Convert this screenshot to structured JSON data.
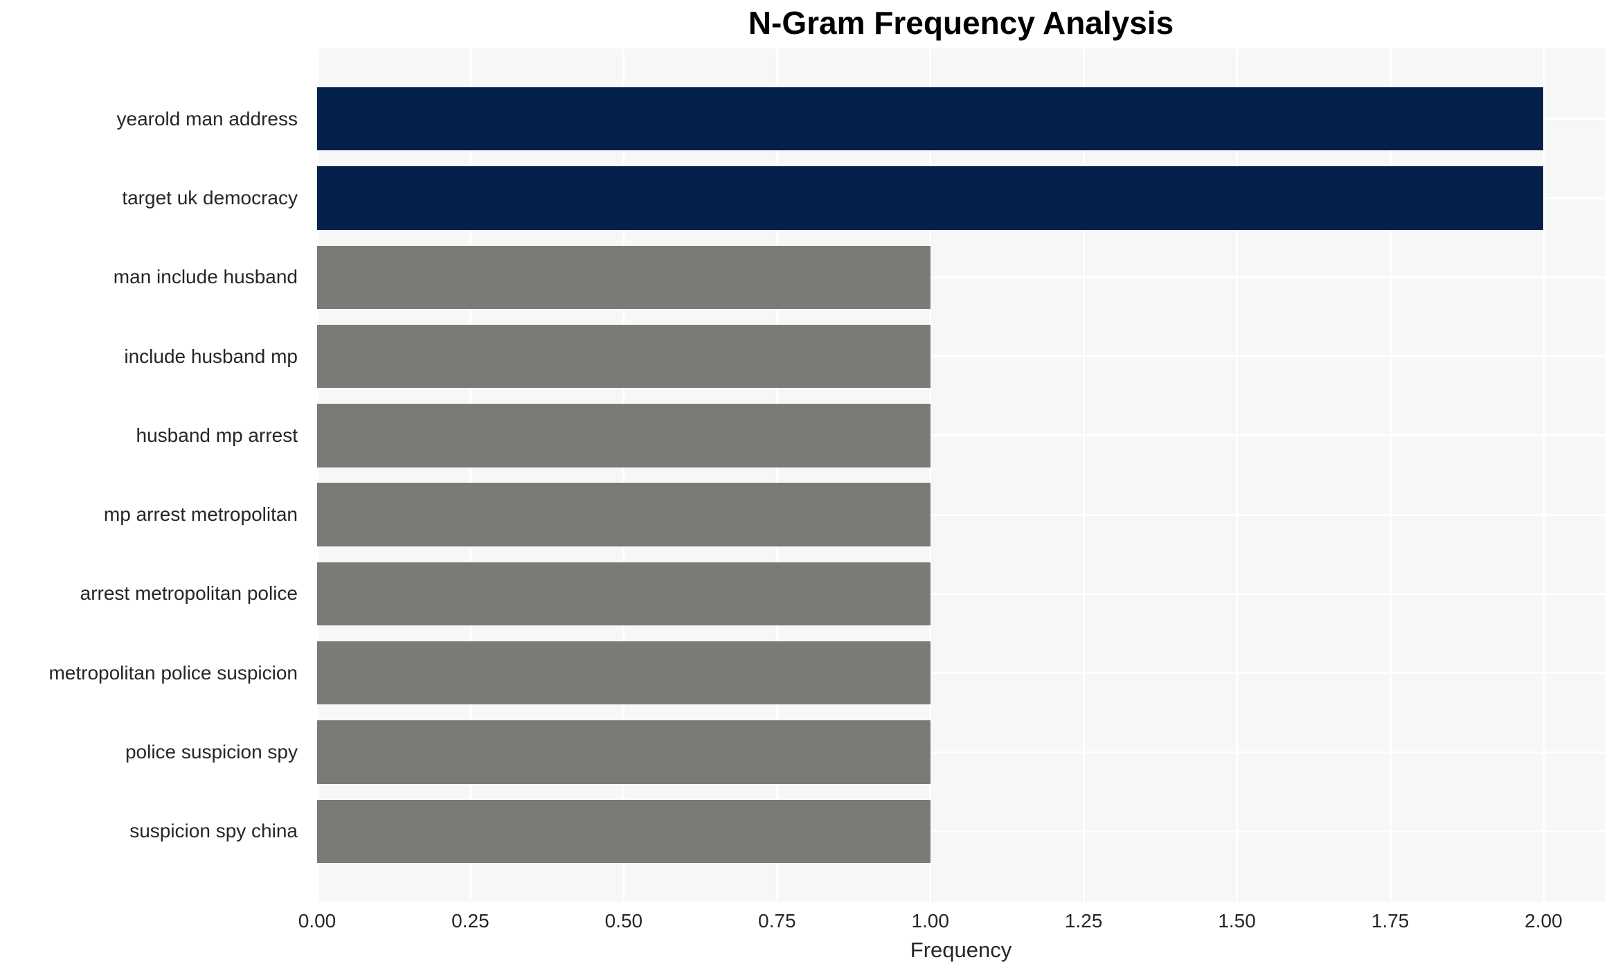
{
  "chart_data": {
    "type": "bar",
    "orientation": "horizontal",
    "title": "N-Gram Frequency Analysis",
    "xlabel": "Frequency",
    "ylabel": "",
    "categories": [
      "yearold man address",
      "target uk democracy",
      "man include husband",
      "include husband mp",
      "husband mp arrest",
      "mp arrest metropolitan",
      "arrest metropolitan police",
      "metropolitan police suspicion",
      "police suspicion spy",
      "suspicion spy china"
    ],
    "values": [
      2,
      2,
      1,
      1,
      1,
      1,
      1,
      1,
      1,
      1
    ],
    "bar_colors": [
      "#03214a",
      "#03214a",
      "#7b7a77",
      "#7b7a77",
      "#7b7a77",
      "#7b7a77",
      "#7b7a77",
      "#7b7a77",
      "#7b7a77",
      "#7b7a77"
    ],
    "xlim": [
      0,
      2.1
    ],
    "xticks": [
      0,
      0.25,
      0.5,
      0.75,
      1.0,
      1.25,
      1.5,
      1.75,
      2.0
    ],
    "xtick_labels": [
      "0.00",
      "0.25",
      "0.50",
      "0.75",
      "1.00",
      "1.25",
      "1.50",
      "1.75",
      "2.00"
    ],
    "grid": true,
    "legend": false,
    "colors": {
      "high_frequency_bar": "#03214a",
      "low_frequency_bar": "#7b7a77",
      "plot_background": "#f7f7f7",
      "gridline": "#ffffff",
      "text": "#262626",
      "title": "#000000"
    }
  }
}
